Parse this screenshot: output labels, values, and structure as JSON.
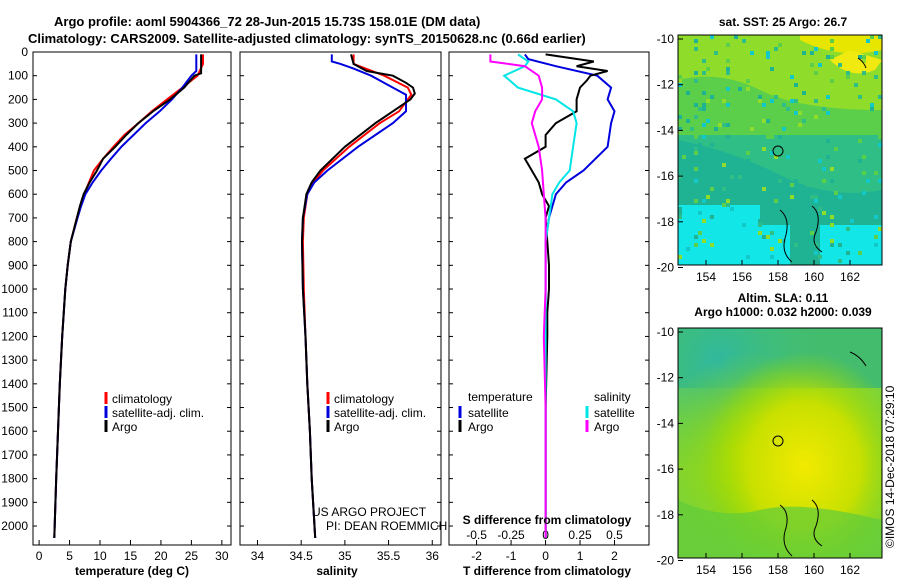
{
  "header": {
    "line1": "Argo profile: aoml 5904366_72 28-Jun-2015 15.73S 158.01E (DM data)",
    "line2": "Climatology: CARS2009. Satellite-adjusted climatology: synTS_20150628.nc (0.66d earlier)"
  },
  "colors": {
    "climatology": "#ff0000",
    "satellite": "#0000dd",
    "argo": "#000000",
    "sal_satellite": "#00e5e5",
    "sal_argo": "#ff00ff"
  },
  "chart_data": [
    {
      "type": "line",
      "id": "temperature",
      "xlabel": "temperature (deg C)",
      "ylabel": "",
      "xlim": [
        -1,
        31.5
      ],
      "ylim": [
        2080,
        0
      ],
      "xticks": [
        0,
        5,
        10,
        15,
        20,
        25,
        30
      ],
      "yticks": [
        0,
        100,
        200,
        300,
        400,
        500,
        600,
        700,
        800,
        900,
        1000,
        1100,
        1200,
        1300,
        1400,
        1500,
        1600,
        1700,
        1800,
        1900,
        2000
      ],
      "legend": [
        "climatology",
        "satellite-adj. clim.",
        "Argo"
      ],
      "series": [
        {
          "name": "climatology",
          "y": [
            10,
            50,
            100,
            150,
            200,
            250,
            300,
            350,
            400,
            450,
            500,
            550,
            600,
            650,
            700,
            800,
            900,
            1000,
            1200,
            1400,
            1600,
            1800,
            2050
          ],
          "x": [
            26.9,
            26.9,
            26.0,
            23.5,
            21.0,
            18.5,
            16.3,
            14.0,
            12.2,
            10.5,
            9.0,
            8.2,
            7.4,
            6.8,
            6.2,
            5.2,
            4.7,
            4.3,
            3.8,
            3.4,
            3.1,
            2.8,
            2.5
          ]
        },
        {
          "name": "satellite-adj. clim.",
          "y": [
            10,
            50,
            80,
            100,
            150,
            200,
            250,
            300,
            350,
            400,
            450,
            500,
            550,
            600,
            650,
            700,
            800,
            900,
            1000,
            1200,
            1400,
            1600,
            1800,
            2050
          ],
          "x": [
            25.8,
            25.8,
            25.8,
            25.0,
            23.5,
            21.8,
            19.8,
            17.5,
            15.5,
            13.5,
            11.8,
            10.2,
            8.8,
            7.6,
            6.9,
            6.3,
            5.2,
            4.7,
            4.3,
            3.8,
            3.4,
            3.1,
            2.8,
            2.5
          ]
        },
        {
          "name": "Argo",
          "y": [
            10,
            50,
            90,
            100,
            150,
            200,
            250,
            300,
            350,
            400,
            450,
            500,
            550,
            600,
            650,
            700,
            800,
            900,
            1000,
            1200,
            1400,
            1600,
            1800,
            2050
          ],
          "x": [
            26.6,
            26.6,
            26.6,
            25.5,
            23.8,
            21.5,
            18.7,
            16.3,
            14.3,
            12.5,
            10.5,
            9.5,
            8.3,
            7.3,
            6.7,
            6.2,
            5.2,
            4.7,
            4.3,
            3.8,
            3.4,
            3.1,
            2.8,
            2.5
          ]
        }
      ]
    },
    {
      "type": "line",
      "id": "salinity",
      "xlabel": "salinity",
      "ylabel": "",
      "xlim": [
        33.8,
        36.1
      ],
      "ylim": [
        2080,
        0
      ],
      "xticks": [
        34,
        34.5,
        35,
        35.5,
        36
      ],
      "legend": [
        "climatology",
        "satellite-adj. clim.",
        "Argo"
      ],
      "annotation": [
        "US ARGO PROJECT",
        "PI: DEAN ROEMMICH"
      ],
      "series": [
        {
          "name": "climatology",
          "y": [
            10,
            50,
            100,
            150,
            180,
            250,
            300,
            400,
            500,
            550,
            600,
            700,
            800,
            1000,
            1200,
            1400,
            1600,
            1800,
            2050
          ],
          "x": [
            35.1,
            35.1,
            35.45,
            35.72,
            35.76,
            35.62,
            35.4,
            35.05,
            34.75,
            34.64,
            34.57,
            34.53,
            34.52,
            34.53,
            34.55,
            34.57,
            34.6,
            34.62,
            34.66
          ]
        },
        {
          "name": "satellite-adj. clim.",
          "y": [
            10,
            40,
            50,
            70,
            100,
            150,
            180,
            250,
            300,
            400,
            500,
            550,
            600,
            700,
            800,
            1000,
            1200,
            1400,
            1600,
            1800,
            2050
          ],
          "x": [
            34.85,
            34.85,
            34.95,
            35.1,
            35.3,
            35.55,
            35.7,
            35.7,
            35.55,
            35.15,
            34.8,
            34.65,
            34.57,
            34.52,
            34.51,
            34.52,
            34.55,
            34.57,
            34.6,
            34.62,
            34.66
          ]
        },
        {
          "name": "Argo",
          "y": [
            10,
            50,
            80,
            100,
            130,
            150,
            175,
            200,
            250,
            300,
            400,
            500,
            550,
            600,
            700,
            800,
            1000,
            1200,
            1400,
            1600,
            1800,
            2050
          ],
          "x": [
            35.07,
            35.1,
            35.25,
            35.55,
            35.7,
            35.78,
            35.8,
            35.75,
            35.55,
            35.35,
            35.0,
            34.72,
            34.62,
            34.56,
            34.52,
            34.51,
            34.52,
            34.55,
            34.57,
            34.6,
            34.62,
            34.66
          ]
        }
      ]
    },
    {
      "type": "line",
      "id": "difference",
      "xlabel": "T difference from climatology",
      "title_bottom": "S difference from climatology",
      "xlim": [
        -2.8,
        3.0
      ],
      "ylim": [
        2080,
        0
      ],
      "xticks": [
        -2,
        -1,
        0,
        1,
        2
      ],
      "sal_ticks": [
        "-0.5",
        "-0.25",
        "0",
        "0.25",
        "0.5"
      ],
      "sal_ticks_pos": [
        -2,
        -1,
        0,
        1,
        2
      ],
      "legend_left_title": "temperature",
      "legend_right_title": "salinity",
      "legend": [
        "satellite",
        "Argo",
        "satellite",
        "Argo"
      ],
      "series": [
        {
          "name": "T satellite",
          "y": [
            10,
            30,
            60,
            100,
            150,
            200,
            250,
            300,
            400,
            500,
            550,
            600,
            700,
            800,
            1000,
            1500,
            2050
          ],
          "x": [
            -0.6,
            -0.5,
            0.3,
            1.5,
            1.9,
            1.8,
            2.0,
            1.9,
            1.8,
            1.1,
            0.6,
            0.3,
            0.1,
            0.0,
            0.0,
            0.0,
            0.0
          ]
        },
        {
          "name": "T Argo",
          "y": [
            10,
            40,
            60,
            80,
            100,
            120,
            150,
            200,
            250,
            300,
            350,
            400,
            450,
            500,
            550,
            600,
            650,
            700,
            800,
            900,
            1000,
            1100,
            1200,
            1500,
            2050
          ],
          "x": [
            0.0,
            1.4,
            0.9,
            1.8,
            1.3,
            1.2,
            1.0,
            0.9,
            0.9,
            0.3,
            0.0,
            0.0,
            -0.6,
            -0.4,
            -0.2,
            -0.1,
            0.1,
            0.0,
            0.05,
            0.1,
            0.1,
            0.05,
            0.05,
            0.0,
            0.0
          ]
        },
        {
          "name": "S satellite",
          "y": [
            10,
            40,
            60,
            100,
            150,
            200,
            250,
            300,
            400,
            500,
            550,
            600,
            700,
            800,
            1000,
            1500,
            2050
          ],
          "x": [
            -0.8,
            -0.5,
            -0.6,
            -1.2,
            -0.8,
            0.3,
            0.8,
            0.9,
            0.8,
            0.7,
            0.4,
            0.2,
            0.1,
            0.0,
            0.0,
            0.0,
            0.0
          ]
        },
        {
          "name": "S Argo",
          "y": [
            10,
            40,
            60,
            100,
            150,
            200,
            250,
            300,
            400,
            500,
            600,
            700,
            800,
            1000,
            1200,
            1500,
            2050
          ],
          "x": [
            -1.6,
            -1.6,
            -0.6,
            -0.2,
            -0.1,
            -0.1,
            -0.3,
            -0.4,
            -0.2,
            -0.1,
            -0.05,
            0.0,
            0.0,
            0.0,
            -0.05,
            0.0,
            0.0
          ]
        }
      ]
    }
  ],
  "maps": {
    "sst": {
      "title": "sat. SST: 25 Argo: 26.7",
      "yticks": [
        "-10",
        "-12",
        "-14",
        "-16",
        "-18",
        "-20"
      ],
      "xticks": [
        "154",
        "156",
        "158",
        "160",
        "162"
      ]
    },
    "sla": {
      "title1": "Altim. SLA: 0.11",
      "title2": "Argo h1000: 0.032 h2000: 0.039",
      "yticks": [
        "-10",
        "-12",
        "-14",
        "-16",
        "-18",
        "-20"
      ],
      "xticks": [
        "154",
        "156",
        "158",
        "160",
        "162"
      ]
    }
  },
  "footer": {
    "stamp": "©IMOS 14-Dec-2018 07:29:10"
  }
}
